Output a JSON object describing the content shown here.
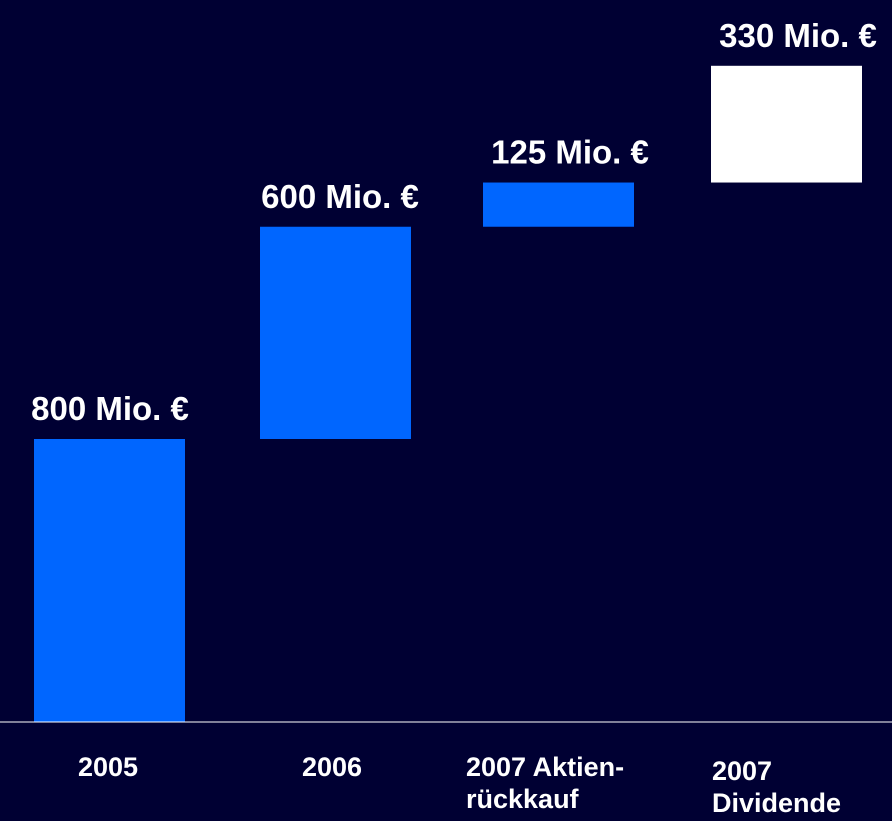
{
  "chart_data": {
    "type": "bar",
    "subtype": "waterfall",
    "categories": [
      [
        "2005"
      ],
      [
        "2006"
      ],
      [
        "2007 Aktien-",
        "rückkauf"
      ],
      [
        "2007",
        "Dividende"
      ]
    ],
    "values": [
      800,
      600,
      125,
      330
    ],
    "value_labels": [
      "800 Mio. €",
      "600 Mio. €",
      "125 Mio. €",
      "330 Mio. €"
    ],
    "unit": "Mio. €",
    "colors": [
      "#0066ff",
      "#0066ff",
      "#0066ff",
      "#ffffff"
    ],
    "background": "#000033",
    "axis_color": "#ffffff",
    "grid": false,
    "legend": "none"
  }
}
